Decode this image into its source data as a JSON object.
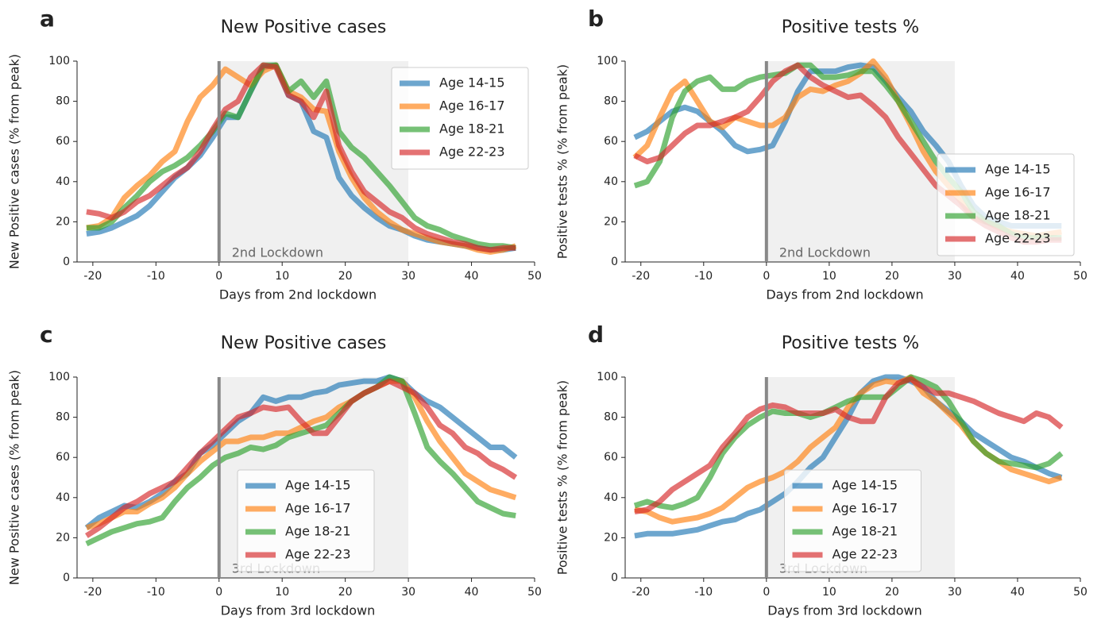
{
  "chart_data": [
    {
      "type": "line",
      "panel": "a",
      "title": "New Positive cases",
      "xlabel": "Days from 2nd lockdown",
      "ylabel": "New Positive cases (% from peak)",
      "annotation": "2nd Lockdown",
      "lockdown_span": [
        0,
        30
      ],
      "legend": "upper right",
      "xlim": [
        -22.5,
        50
      ],
      "ylim": [
        0,
        100
      ],
      "xticks": [
        -20,
        -10,
        0,
        10,
        20,
        30,
        40,
        50
      ],
      "yticks": [
        0,
        20,
        40,
        60,
        80,
        100
      ],
      "x": [
        -21,
        -19,
        -17,
        -15,
        -13,
        -11,
        -9,
        -7,
        -5,
        -3,
        -1,
        1,
        3,
        5,
        7,
        9,
        11,
        13,
        15,
        17,
        19,
        21,
        23,
        25,
        27,
        29,
        31,
        33,
        35,
        37,
        39,
        41,
        43,
        45,
        47
      ],
      "series": [
        {
          "name": "Age 14-15",
          "color": "#1f77b4",
          "values": [
            14,
            15,
            17,
            20,
            23,
            28,
            35,
            42,
            47,
            53,
            62,
            72,
            72,
            85,
            97,
            98,
            83,
            80,
            65,
            62,
            42,
            33,
            27,
            22,
            18,
            16,
            13,
            11,
            10,
            9,
            8,
            7,
            6,
            6,
            7
          ]
        },
        {
          "name": "Age 16-17",
          "color": "#ff7f0e",
          "values": [
            17,
            18,
            22,
            32,
            38,
            43,
            50,
            55,
            70,
            82,
            88,
            96,
            92,
            88,
            95,
            98,
            85,
            82,
            76,
            75,
            55,
            42,
            32,
            25,
            20,
            16,
            14,
            12,
            10,
            9,
            8,
            6,
            5,
            6,
            8
          ]
        },
        {
          "name": "Age 18-21",
          "color": "#2ca02c",
          "values": [
            17,
            17,
            20,
            27,
            33,
            40,
            45,
            48,
            52,
            58,
            65,
            74,
            72,
            85,
            98,
            98,
            85,
            90,
            82,
            90,
            65,
            57,
            52,
            45,
            38,
            30,
            22,
            18,
            16,
            13,
            11,
            9,
            8,
            8,
            7
          ]
        },
        {
          "name": "Age 22-23",
          "color": "#d62728",
          "values": [
            25,
            24,
            22,
            25,
            30,
            33,
            38,
            43,
            47,
            55,
            66,
            76,
            80,
            92,
            98,
            97,
            83,
            80,
            72,
            85,
            58,
            45,
            35,
            30,
            25,
            22,
            17,
            14,
            12,
            10,
            9,
            7,
            6,
            7,
            7
          ]
        }
      ]
    },
    {
      "type": "line",
      "panel": "b",
      "title": "Positive tests %",
      "xlabel": "Days from 2nd lockdown",
      "ylabel": "Positive tests % (% from peak)",
      "annotation": "2nd Lockdown",
      "lockdown_span": [
        0,
        30
      ],
      "legend": "lower right",
      "xlim": [
        -22.5,
        50
      ],
      "ylim": [
        0,
        100
      ],
      "xticks": [
        -20,
        -10,
        0,
        10,
        20,
        30,
        40,
        50
      ],
      "yticks": [
        0,
        20,
        40,
        60,
        80,
        100
      ],
      "x": [
        -21,
        -19,
        -17,
        -15,
        -13,
        -11,
        -9,
        -7,
        -5,
        -3,
        -1,
        1,
        3,
        5,
        7,
        9,
        11,
        13,
        15,
        17,
        19,
        21,
        23,
        25,
        27,
        29,
        31,
        33,
        35,
        37,
        39,
        41,
        43,
        45,
        47
      ],
      "series": [
        {
          "name": "Age 14-15",
          "color": "#1f77b4",
          "values": [
            62,
            65,
            70,
            75,
            77,
            75,
            70,
            65,
            58,
            55,
            56,
            58,
            70,
            85,
            95,
            95,
            95,
            97,
            98,
            97,
            90,
            82,
            75,
            65,
            58,
            50,
            38,
            28,
            22,
            20,
            18,
            18,
            18,
            18,
            18
          ]
        },
        {
          "name": "Age 16-17",
          "color": "#ff7f0e",
          "values": [
            52,
            58,
            72,
            85,
            90,
            80,
            70,
            67,
            72,
            70,
            68,
            68,
            72,
            82,
            86,
            85,
            88,
            90,
            94,
            100,
            92,
            80,
            68,
            55,
            45,
            38,
            30,
            22,
            20,
            17,
            15,
            14,
            13,
            14,
            15
          ]
        },
        {
          "name": "Age 18-21",
          "color": "#2ca02c",
          "values": [
            38,
            40,
            50,
            72,
            85,
            90,
            92,
            86,
            86,
            90,
            92,
            93,
            94,
            98,
            98,
            92,
            92,
            93,
            95,
            95,
            88,
            80,
            70,
            60,
            50,
            42,
            35,
            25,
            20,
            18,
            14,
            12,
            12,
            12,
            12
          ]
        },
        {
          "name": "Age 22-23",
          "color": "#d62728",
          "values": [
            53,
            50,
            52,
            58,
            64,
            68,
            68,
            70,
            72,
            75,
            82,
            90,
            95,
            98,
            92,
            88,
            85,
            82,
            83,
            78,
            72,
            62,
            54,
            46,
            38,
            33,
            28,
            22,
            18,
            15,
            12,
            10,
            10,
            11,
            11
          ]
        }
      ]
    },
    {
      "type": "line",
      "panel": "c",
      "title": "New Positive cases",
      "xlabel": "Days from 3rd lockdown",
      "ylabel": "New Positive cases (% from peak)",
      "annotation": "3rd Lockdown",
      "lockdown_span": [
        0,
        30
      ],
      "legend": "lower center",
      "xlim": [
        -22.5,
        50
      ],
      "ylim": [
        0,
        100
      ],
      "xticks": [
        -20,
        -10,
        0,
        10,
        20,
        30,
        40,
        50
      ],
      "yticks": [
        0,
        20,
        40,
        60,
        80,
        100
      ],
      "x": [
        -21,
        -19,
        -17,
        -15,
        -13,
        -11,
        -9,
        -7,
        -5,
        -3,
        -1,
        1,
        3,
        5,
        7,
        9,
        11,
        13,
        15,
        17,
        19,
        21,
        23,
        25,
        27,
        29,
        31,
        33,
        35,
        37,
        39,
        41,
        43,
        45,
        47
      ],
      "series": [
        {
          "name": "Age 14-15",
          "color": "#1f77b4",
          "values": [
            25,
            30,
            33,
            36,
            35,
            38,
            42,
            48,
            52,
            62,
            66,
            72,
            78,
            82,
            90,
            88,
            90,
            90,
            92,
            93,
            96,
            97,
            98,
            98,
            100,
            98,
            92,
            88,
            85,
            80,
            75,
            70,
            65,
            65,
            60
          ]
        },
        {
          "name": "Age 16-17",
          "color": "#ff7f0e",
          "values": [
            25,
            27,
            30,
            33,
            33,
            37,
            40,
            45,
            52,
            58,
            63,
            68,
            68,
            70,
            70,
            72,
            72,
            75,
            78,
            80,
            85,
            88,
            92,
            95,
            98,
            98,
            90,
            78,
            68,
            60,
            52,
            48,
            44,
            42,
            40
          ]
        },
        {
          "name": "Age 18-21",
          "color": "#2ca02c",
          "values": [
            17,
            20,
            23,
            25,
            27,
            28,
            30,
            38,
            45,
            50,
            56,
            60,
            62,
            65,
            64,
            66,
            70,
            72,
            74,
            76,
            82,
            88,
            92,
            95,
            100,
            98,
            82,
            65,
            58,
            52,
            45,
            38,
            35,
            32,
            31
          ]
        },
        {
          "name": "Age 22-23",
          "color": "#d62728",
          "values": [
            21,
            25,
            30,
            35,
            38,
            42,
            45,
            48,
            55,
            62,
            68,
            74,
            80,
            82,
            85,
            84,
            85,
            78,
            72,
            72,
            80,
            88,
            92,
            95,
            98,
            95,
            92,
            85,
            76,
            72,
            65,
            62,
            57,
            54,
            50
          ]
        }
      ]
    },
    {
      "type": "line",
      "panel": "d",
      "title": "Positive tests %",
      "xlabel": "Days from 3rd lockdown",
      "ylabel": "Positive tests % (% from peak)",
      "annotation": "3rd Lockdown",
      "lockdown_span": [
        0,
        30
      ],
      "legend": "lower center",
      "xlim": [
        -22.5,
        50
      ],
      "ylim": [
        0,
        100
      ],
      "xticks": [
        -20,
        -10,
        0,
        10,
        20,
        30,
        40,
        50
      ],
      "yticks": [
        0,
        20,
        40,
        60,
        80,
        100
      ],
      "x": [
        -21,
        -19,
        -17,
        -15,
        -13,
        -11,
        -9,
        -7,
        -5,
        -3,
        -1,
        1,
        3,
        5,
        7,
        9,
        11,
        13,
        15,
        17,
        19,
        21,
        23,
        25,
        27,
        29,
        31,
        33,
        35,
        37,
        39,
        41,
        43,
        45,
        47
      ],
      "series": [
        {
          "name": "Age 14-15",
          "color": "#1f77b4",
          "values": [
            21,
            22,
            22,
            22,
            23,
            24,
            26,
            28,
            29,
            32,
            34,
            38,
            42,
            48,
            55,
            60,
            70,
            80,
            92,
            98,
            100,
            100,
            98,
            95,
            88,
            83,
            78,
            72,
            68,
            64,
            60,
            58,
            55,
            52,
            50
          ]
        },
        {
          "name": "Age 16-17",
          "color": "#ff7f0e",
          "values": [
            34,
            33,
            30,
            28,
            29,
            30,
            32,
            35,
            40,
            45,
            48,
            50,
            53,
            58,
            65,
            70,
            75,
            85,
            92,
            96,
            98,
            97,
            100,
            92,
            88,
            82,
            76,
            68,
            62,
            58,
            54,
            52,
            50,
            48,
            50
          ]
        },
        {
          "name": "Age 18-21",
          "color": "#2ca02c",
          "values": [
            36,
            38,
            36,
            35,
            37,
            40,
            50,
            62,
            70,
            76,
            80,
            83,
            82,
            82,
            80,
            82,
            85,
            88,
            90,
            90,
            90,
            95,
            100,
            98,
            95,
            88,
            78,
            68,
            62,
            58,
            57,
            56,
            55,
            57,
            62
          ]
        },
        {
          "name": "Age 22-23",
          "color": "#d62728",
          "values": [
            33,
            34,
            38,
            44,
            48,
            52,
            56,
            65,
            72,
            80,
            84,
            86,
            85,
            82,
            82,
            82,
            84,
            80,
            78,
            78,
            90,
            97,
            99,
            95,
            92,
            92,
            90,
            88,
            85,
            82,
            80,
            78,
            82,
            80,
            75
          ]
        }
      ]
    }
  ]
}
